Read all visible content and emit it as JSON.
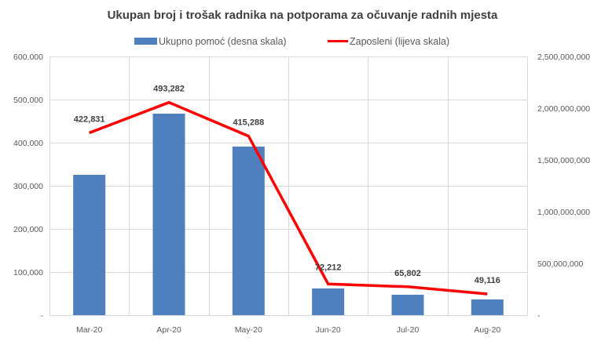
{
  "chart_data": {
    "type": "bar+line",
    "title": "Ukupan broj i trošak radnika na potporama za očuvanje radnih mjesta",
    "categories": [
      "Mar-20",
      "Apr-20",
      "May-20",
      "Jun-20",
      "Jul-20",
      "Aug-20"
    ],
    "series": [
      {
        "name": "Ukupno pomoć (desna skala)",
        "type": "bar",
        "axis": "right",
        "color": "#4F7FBE",
        "values": [
          1356000000,
          1947000000,
          1629000000,
          258000000,
          197000000,
          152000000
        ]
      },
      {
        "name": "Zaposleni (lijeva skala)",
        "type": "line",
        "axis": "left",
        "color": "#FF0000",
        "values": [
          422831,
          493282,
          415288,
          72212,
          65802,
          49116
        ],
        "data_labels": [
          "422,831",
          "493,282",
          "415,288",
          "72,212",
          "65,802",
          "49,116"
        ]
      }
    ],
    "left_axis": {
      "ylim": [
        0,
        600000
      ],
      "ticks": [
        0,
        100000,
        200000,
        300000,
        400000,
        500000,
        600000
      ],
      "tick_labels": [
        "-",
        "100,000",
        "200,000",
        "300,000",
        "400,000",
        "500,000",
        "600,000"
      ]
    },
    "right_axis": {
      "ylim": [
        0,
        2500000000
      ],
      "ticks": [
        0,
        500000000,
        1000000000,
        1500000000,
        2000000000,
        2500000000
      ],
      "tick_labels": [
        "-",
        "500,000,000",
        "1,000,000,000",
        "1,500,000,000",
        "2,000,000,000",
        "2,500,000,000"
      ]
    },
    "xlabel": "",
    "ylabel": "",
    "grid": true,
    "legend_position": "top"
  }
}
